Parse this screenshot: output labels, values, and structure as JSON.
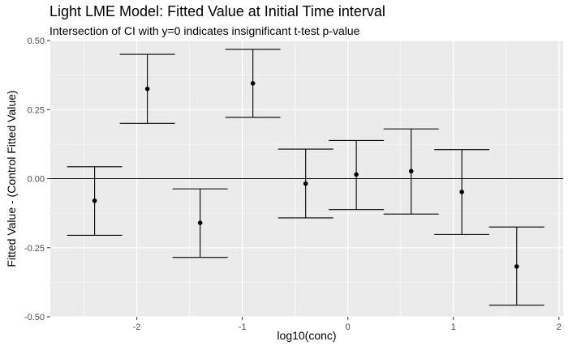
{
  "chart_data": {
    "type": "errorbar",
    "title": "Light LME Model: Fitted Value at Initial Time interval",
    "subtitle": "Intersection of CI with y=0 indicates insignificant t-test p-value",
    "xlabel": "log10(conc)",
    "ylabel": "Fitted Value - (Control Fitted Value)",
    "xlim": [
      -2.82,
      2.04
    ],
    "ylim": [
      -0.5,
      0.5
    ],
    "x_ticks": [
      -2,
      -1,
      0,
      1,
      2
    ],
    "y_ticks": [
      -0.5,
      -0.25,
      0,
      0.25,
      0.5
    ],
    "x_tick_labels": [
      "-2",
      "-1",
      "0",
      "1",
      "2"
    ],
    "y_tick_labels": [
      "-0.50",
      "-0.25",
      "0.00",
      "0.25",
      "0.50"
    ],
    "hline_y": 0,
    "grid": true,
    "points": [
      {
        "x": -2.4,
        "y": -0.08,
        "lower": -0.205,
        "upper": 0.043
      },
      {
        "x": -1.9,
        "y": 0.325,
        "lower": 0.2,
        "upper": 0.45
      },
      {
        "x": -1.4,
        "y": -0.16,
        "lower": -0.285,
        "upper": -0.037
      },
      {
        "x": -0.9,
        "y": 0.345,
        "lower": 0.222,
        "upper": 0.468
      },
      {
        "x": -0.4,
        "y": -0.018,
        "lower": -0.142,
        "upper": 0.107
      },
      {
        "x": 0.08,
        "y": 0.015,
        "lower": -0.112,
        "upper": 0.138
      },
      {
        "x": 0.6,
        "y": 0.027,
        "lower": -0.128,
        "upper": 0.18
      },
      {
        "x": 1.08,
        "y": -0.048,
        "lower": -0.202,
        "upper": 0.105
      },
      {
        "x": 1.6,
        "y": -0.318,
        "lower": -0.458,
        "upper": -0.175
      }
    ]
  }
}
